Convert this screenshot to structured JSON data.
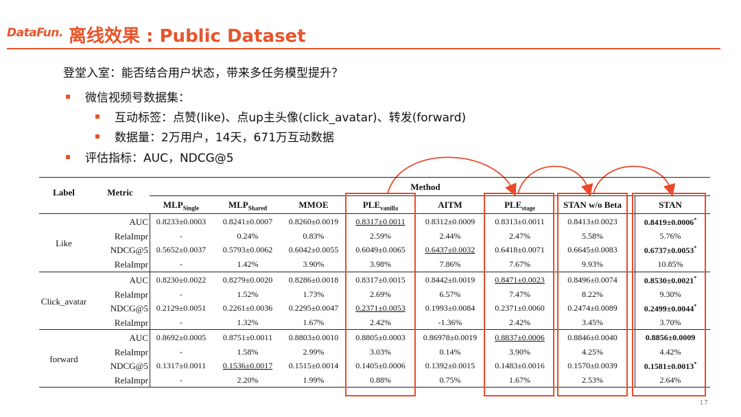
{
  "header": {
    "logo": "DataFun.",
    "title": "离线效果 : Public Dataset"
  },
  "question": "登堂入室：能否结合用户状态，带来多任务模型提升？",
  "bullets": [
    {
      "level": 1,
      "text": "微信视频号数据集："
    },
    {
      "level": 2,
      "text": "互动标签：点赞(like)、点up主头像(click_avatar)、转发(forward)"
    },
    {
      "level": 2,
      "text": "数据量：2万用户，14天，671万互动数据"
    },
    {
      "level": 1,
      "text": "评估指标：AUC，NDCG@5"
    }
  ],
  "table": {
    "label_header": "Label",
    "metric_header": "Metric",
    "method_header": "Method",
    "columns": [
      {
        "main": "MLP",
        "sub": "Single"
      },
      {
        "main": "MLP",
        "sub": "Shared"
      },
      {
        "main": "MMOE",
        "sub": ""
      },
      {
        "main": "PLE",
        "sub": "vanilla"
      },
      {
        "main": "AITM",
        "sub": ""
      },
      {
        "main": "PLE",
        "sub": "stage"
      },
      {
        "main": "STAN w/o Beta",
        "sub": ""
      },
      {
        "main": "STAN",
        "sub": ""
      }
    ],
    "groups": [
      {
        "label": "Like",
        "rows": [
          {
            "metric": "AUC",
            "cells": [
              {
                "v": "0.8233±0.0003"
              },
              {
                "v": "0.8241±0.0007"
              },
              {
                "v": "0.8260±0.0019"
              },
              {
                "v": "0.8317±0.0011",
                "u": true
              },
              {
                "v": "0.8312±0.0009"
              },
              {
                "v": "0.8313±0.0011"
              },
              {
                "v": "0.8413±0.0023"
              },
              {
                "v": "0.8419±0.0006",
                "b": true,
                "s": "*"
              }
            ]
          },
          {
            "metric": "RelaImpr",
            "cells": [
              {
                "v": "-"
              },
              {
                "v": "0.24%"
              },
              {
                "v": "0.83%"
              },
              {
                "v": "2.59%"
              },
              {
                "v": "2.44%"
              },
              {
                "v": "2.47%"
              },
              {
                "v": "5.58%"
              },
              {
                "v": "5.76%"
              }
            ]
          },
          {
            "metric": "NDCG@5",
            "cells": [
              {
                "v": "0.5652±0.0037"
              },
              {
                "v": "0.5793±0.0062"
              },
              {
                "v": "0.6042±0.0055"
              },
              {
                "v": "0.6049±0.0065"
              },
              {
                "v": "0.6437±0.0032",
                "u": true
              },
              {
                "v": "0.6418±0.0071"
              },
              {
                "v": "0.6645±0.0083"
              },
              {
                "v": "0.6737±0.0053",
                "b": true,
                "s": "*"
              }
            ]
          },
          {
            "metric": "RelaImpr",
            "cells": [
              {
                "v": "-"
              },
              {
                "v": "1.42%"
              },
              {
                "v": "3.90%"
              },
              {
                "v": "3.98%"
              },
              {
                "v": "7.86%"
              },
              {
                "v": "7.67%"
              },
              {
                "v": "9.93%"
              },
              {
                "v": "10.85%"
              }
            ]
          }
        ]
      },
      {
        "label": "Click_avatar",
        "rows": [
          {
            "metric": "AUC",
            "cells": [
              {
                "v": "0.8230±0.0022"
              },
              {
                "v": "0.8279±0.0020"
              },
              {
                "v": "0.8286±0.0018"
              },
              {
                "v": "0.8317±0.0015"
              },
              {
                "v": "0.8442±0.0019"
              },
              {
                "v": "0.8471±0.0023",
                "u": true
              },
              {
                "v": "0.8496±0.0074"
              },
              {
                "v": "0.8530±0.0021",
                "b": true,
                "s": "*"
              }
            ]
          },
          {
            "metric": "RelaImpr",
            "cells": [
              {
                "v": "-"
              },
              {
                "v": "1.52%"
              },
              {
                "v": "1.73%"
              },
              {
                "v": "2.69%"
              },
              {
                "v": "6.57%"
              },
              {
                "v": "7.47%"
              },
              {
                "v": "8.22%"
              },
              {
                "v": "9.30%"
              }
            ]
          },
          {
            "metric": "NDCG@5",
            "cells": [
              {
                "v": "0.2129±0.0051"
              },
              {
                "v": "0.2261±0.0036"
              },
              {
                "v": "0.2295±0.0047"
              },
              {
                "v": "0.2371±0.0053",
                "u": true
              },
              {
                "v": "0.1993±0.0084"
              },
              {
                "v": "0.2371±0.0060"
              },
              {
                "v": "0.2474±0.0089"
              },
              {
                "v": "0.2499±0.0044",
                "b": true,
                "s": "*"
              }
            ]
          },
          {
            "metric": "RelaImpr",
            "cells": [
              {
                "v": "-"
              },
              {
                "v": "1.32%"
              },
              {
                "v": "1.67%"
              },
              {
                "v": "2.42%"
              },
              {
                "v": "-1.36%"
              },
              {
                "v": "2.42%"
              },
              {
                "v": "3.45%"
              },
              {
                "v": "3.70%"
              }
            ]
          }
        ]
      },
      {
        "label": "forward",
        "rows": [
          {
            "metric": "AUC",
            "cells": [
              {
                "v": "0.8692±0.0005"
              },
              {
                "v": "0.8751±0.0011"
              },
              {
                "v": "0.8803±0.0010"
              },
              {
                "v": "0.8805±0.0003"
              },
              {
                "v": "0.86978±0.0019"
              },
              {
                "v": "0.8837±0.0006",
                "u": true
              },
              {
                "v": "0.8846±0.0040"
              },
              {
                "v": "0.8856±0.0009",
                "b": true
              }
            ]
          },
          {
            "metric": "RelaImpr",
            "cells": [
              {
                "v": "-"
              },
              {
                "v": "1.58%"
              },
              {
                "v": "2.99%"
              },
              {
                "v": "3.03%"
              },
              {
                "v": "0.14%"
              },
              {
                "v": "3.90%"
              },
              {
                "v": "4.25%"
              },
              {
                "v": "4.42%"
              }
            ]
          },
          {
            "metric": "NDCG@5",
            "cells": [
              {
                "v": "0.1317±0.0011"
              },
              {
                "v": "0.1536±0.0017",
                "u": true
              },
              {
                "v": "0.1515±0.0014"
              },
              {
                "v": "0.1405±0.0006"
              },
              {
                "v": "0.1392±0.0015"
              },
              {
                "v": "0.1483±0.0016"
              },
              {
                "v": "0.1570±0.0039"
              },
              {
                "v": "0.1581±0.0013",
                "b": true,
                "s": "*"
              }
            ]
          },
          {
            "metric": "RelaImpr",
            "cells": [
              {
                "v": "-"
              },
              {
                "v": "2.20%"
              },
              {
                "v": "1.99%"
              },
              {
                "v": "0.88%"
              },
              {
                "v": "0.75%"
              },
              {
                "v": "1.67%"
              },
              {
                "v": "2.53%"
              },
              {
                "v": "2.64%"
              }
            ]
          }
        ]
      }
    ]
  },
  "page_number": "17",
  "colors": {
    "accent": "#e8542a",
    "box": "#e84a2a"
  }
}
